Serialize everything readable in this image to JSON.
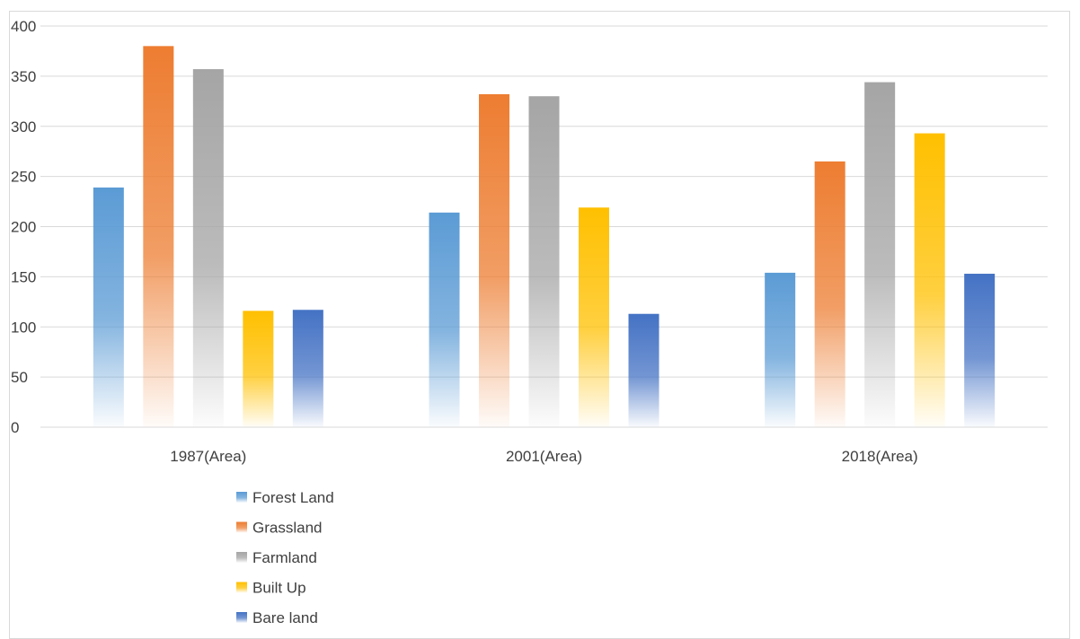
{
  "chart_data": {
    "type": "bar",
    "categories": [
      "1987(Area)",
      "2001(Area)",
      "2018(Area)"
    ],
    "series": [
      {
        "name": "Forest Land",
        "values": [
          239,
          214,
          154
        ],
        "color": "#5b9bd5"
      },
      {
        "name": "Grassland",
        "values": [
          380,
          332,
          265
        ],
        "color": "#ed7d31"
      },
      {
        "name": "Farmland",
        "values": [
          357,
          330,
          344
        ],
        "color": "#a5a5a5"
      },
      {
        "name": "Built Up",
        "values": [
          116,
          219,
          293
        ],
        "color": "#ffc000"
      },
      {
        "name": "Bare land",
        "values": [
          117,
          113,
          153
        ],
        "color": "#4472c4"
      }
    ],
    "yticks": [
      "0",
      "50",
      "100",
      "150",
      "200",
      "250",
      "300",
      "350",
      "400"
    ],
    "ylim": [
      0,
      400
    ],
    "grid": true,
    "legend_position": "bottom-left",
    "fill_style": "gradient fading to white at base"
  }
}
